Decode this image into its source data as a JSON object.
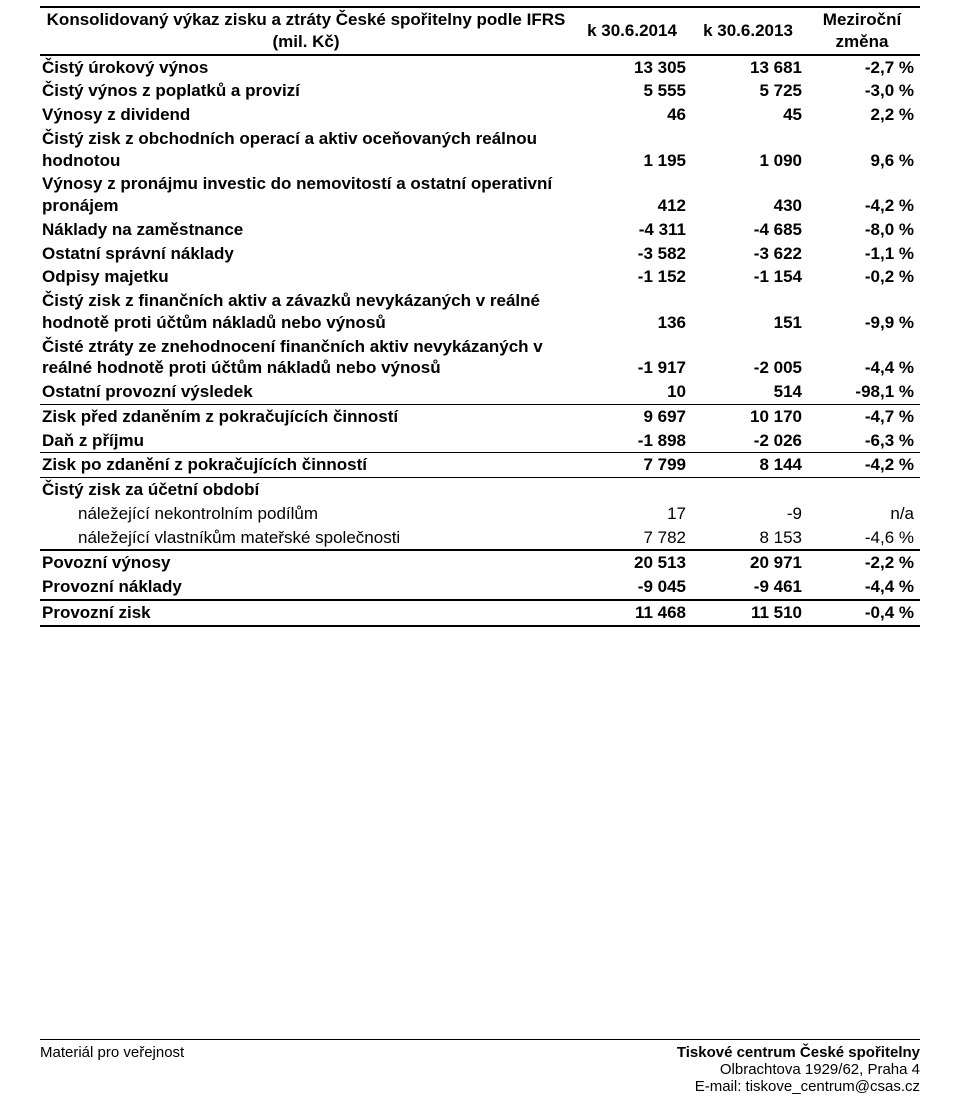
{
  "table": {
    "header": {
      "title_l1": "Konsolidovaný výkaz zisku a ztráty České spořitelny podle IFRS",
      "title_l2": "(mil. Kč)",
      "col2": "k 30.6.2014",
      "col3": "k 30.6.2013",
      "col4_l1": "Meziroční",
      "col4_l2": "změna"
    },
    "rows": [
      {
        "label": "Čistý úrokový výnos",
        "a": "13 305",
        "b": "13 681",
        "c": "-2,7 %",
        "bold": true,
        "indent": 0
      },
      {
        "label": "Čistý výnos z poplatků a provizí",
        "a": "5 555",
        "b": "5 725",
        "c": "-3,0 %",
        "bold": true,
        "indent": 0
      },
      {
        "label": "Výnosy z dividend",
        "a": "46",
        "b": "45",
        "c": "2,2 %",
        "bold": true,
        "indent": 0
      },
      {
        "label": "Čistý zisk z obchodních operací a aktiv oceňovaných reálnou hodnotou",
        "a": "1 195",
        "b": "1 090",
        "c": "9,6 %",
        "bold": true,
        "indent": 0
      },
      {
        "label": "Výnosy z pronájmu investic do nemovitostí a ostatní operativní pronájem",
        "a": "412",
        "b": "430",
        "c": "-4,2 %",
        "bold": true,
        "indent": 0
      },
      {
        "label": "Náklady na zaměstnance",
        "a": "-4 311",
        "b": "-4 685",
        "c": "-8,0 %",
        "bold": true,
        "indent": 0
      },
      {
        "label": "Ostatní správní náklady",
        "a": "-3 582",
        "b": "-3 622",
        "c": "-1,1 %",
        "bold": true,
        "indent": 0
      },
      {
        "label": "Odpisy majetku",
        "a": "-1 152",
        "b": "-1 154",
        "c": "-0,2 %",
        "bold": true,
        "indent": 0
      },
      {
        "label": "Čistý zisk z finančních aktiv a závazků nevykázaných v reálné hodnotě proti účtům nákladů nebo výnosů",
        "a": "136",
        "b": "151",
        "c": "-9,9 %",
        "bold": true,
        "indent": 0
      },
      {
        "label": "Čisté ztráty ze znehodnocení finančních aktiv nevykázaných v reálné hodnotě proti účtům nákladů nebo výnosů",
        "a": "-1 917",
        "b": "-2 005",
        "c": "-4,4 %",
        "bold": true,
        "indent": 0
      },
      {
        "label": "Ostatní provozní výsledek",
        "a": "10",
        "b": "514",
        "c": "-98,1 %",
        "bold": true,
        "indent": 0
      },
      {
        "label": "Zisk před zdaněním z pokračujících činností",
        "a": "9 697",
        "b": "10 170",
        "c": "-4,7 %",
        "bold": true,
        "indent": 0,
        "border": "mid"
      },
      {
        "label": "Daň z příjmu",
        "a": "-1 898",
        "b": "-2 026",
        "c": "-6,3 %",
        "bold": true,
        "indent": 0
      },
      {
        "label": "Zisk po zdanění z pokračujících činností",
        "a": "7 799",
        "b": "8 144",
        "c": "-4,2 %",
        "bold": true,
        "indent": 0,
        "border": "mid"
      },
      {
        "label": "Čistý zisk za účetní období",
        "a": "",
        "b": "",
        "c": "",
        "bold": true,
        "indent": 0,
        "border": "mid"
      },
      {
        "label": "náležející nekontrolním podílům",
        "a": "17",
        "b": "-9",
        "c": "n/a",
        "bold": false,
        "indent": 1
      },
      {
        "label": "náležející vlastníkům mateřské společnosti",
        "a": "7 782",
        "b": "8 153",
        "c": "-4,6 %",
        "bold": false,
        "indent": 1
      },
      {
        "label": "Povozní výnosy",
        "a": "20 513",
        "b": "20 971",
        "c": "-2,2 %",
        "bold": true,
        "indent": 0,
        "border": "top"
      },
      {
        "label": "Provozní náklady",
        "a": "-9 045",
        "b": "-9 461",
        "c": "-4,4 %",
        "bold": true,
        "indent": 0
      },
      {
        "label": "Provozní zisk",
        "a": "11 468",
        "b": "11 510",
        "c": "-0,4 %",
        "bold": true,
        "indent": 0,
        "border": "top",
        "bottom": "top"
      }
    ]
  },
  "footer": {
    "left": "Materiál pro veřejnost",
    "right_title": "Tiskové centrum České spořitelny",
    "right_addr": "Olbrachtova 1929/62, Praha 4",
    "right_email": "E-mail: tiskove_centrum@csas.cz"
  }
}
